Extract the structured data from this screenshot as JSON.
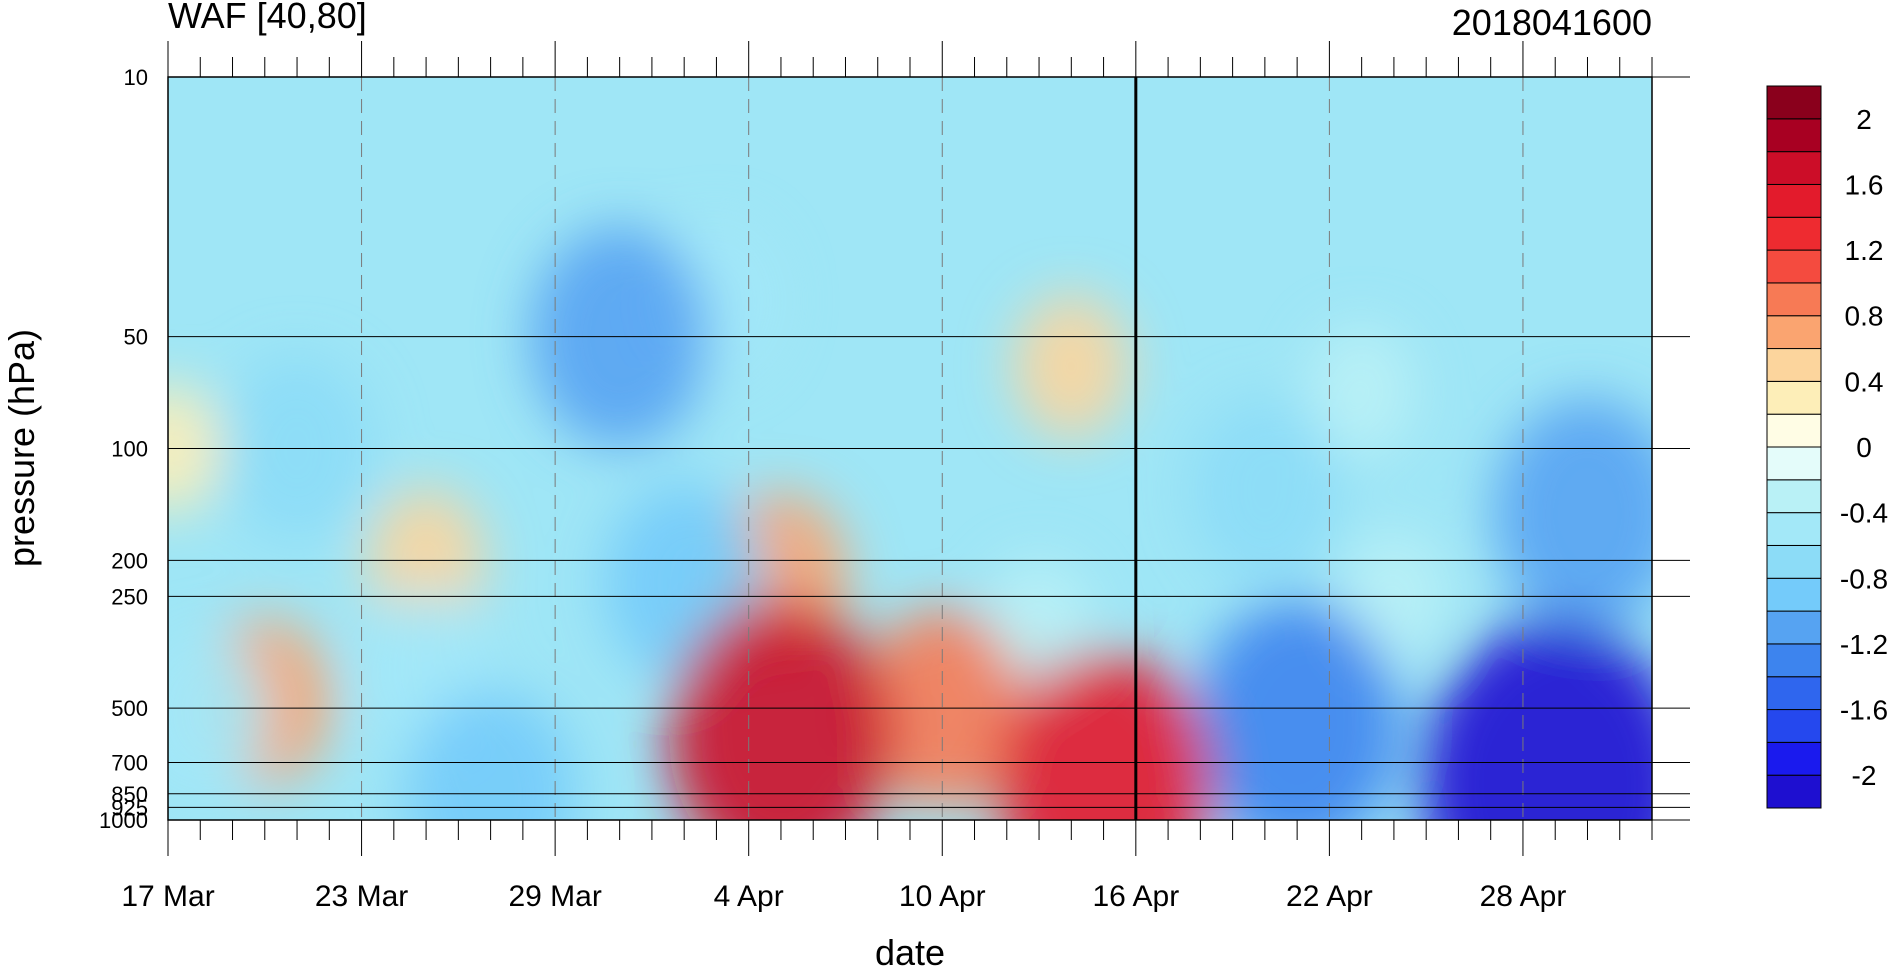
{
  "chart_data": {
    "type": "heatmap",
    "title_left": "WAF [40,80]",
    "title_right": "2018041600",
    "xlabel": "date",
    "ylabel": "pressure (hPa)",
    "x_ticks": [
      {
        "date": "2018-03-17",
        "label": "17 Mar"
      },
      {
        "date": "2018-03-23",
        "label": "23 Mar"
      },
      {
        "date": "2018-03-29",
        "label": "29 Mar"
      },
      {
        "date": "2018-04-04",
        "label": "4 Apr"
      },
      {
        "date": "2018-04-10",
        "label": "10 Apr"
      },
      {
        "date": "2018-04-16",
        "label": "16 Apr"
      },
      {
        "date": "2018-04-22",
        "label": "22 Apr"
      },
      {
        "date": "2018-04-28",
        "label": "28 Apr"
      }
    ],
    "xlim": [
      "2018-03-17",
      "2018-05-02"
    ],
    "analysis_date": "2018-04-16",
    "y_scale": "log",
    "ylim": [
      1000,
      10
    ],
    "y_ticks": [
      {
        "value": 10,
        "label": "10"
      },
      {
        "value": 50,
        "label": "50"
      },
      {
        "value": 100,
        "label": "100"
      },
      {
        "value": 200,
        "label": "200"
      },
      {
        "value": 250,
        "label": "250"
      },
      {
        "value": 500,
        "label": "500"
      },
      {
        "value": 700,
        "label": "700"
      },
      {
        "value": 850,
        "label": "850"
      },
      {
        "value": 925,
        "label": "925"
      },
      {
        "value": 1000,
        "label": "1000"
      }
    ],
    "colorbar": {
      "levels": [
        -2.2,
        -2.0,
        -1.8,
        -1.6,
        -1.4,
        -1.2,
        -1.0,
        -0.8,
        -0.6,
        -0.4,
        -0.2,
        0.0,
        0.2,
        0.4,
        0.6,
        0.8,
        1.0,
        1.2,
        1.4,
        1.6,
        1.8,
        2.0,
        2.2
      ],
      "colors": [
        "#1e0fd0",
        "#1a1aee",
        "#2548ee",
        "#2f66ee",
        "#3d84ee",
        "#56a3f2",
        "#74cbfa",
        "#8cdcf7",
        "#a3e8f8",
        "#b9f1f6",
        "#e4fcfa",
        "#fffde5",
        "#fdeeb8",
        "#fcd59d",
        "#faa470",
        "#f77a55",
        "#f44b3f",
        "#ee2b30",
        "#e31b2c",
        "#cc0d28",
        "#a80022",
        "#8a001c"
      ],
      "tick_labels": [
        {
          "value": 2.0,
          "label": "2"
        },
        {
          "value": 1.6,
          "label": "1.6"
        },
        {
          "value": 1.2,
          "label": "1.2"
        },
        {
          "value": 0.8,
          "label": "0.8"
        },
        {
          "value": 0.4,
          "label": "0.4"
        },
        {
          "value": 0.0,
          "label": "0"
        },
        {
          "value": -0.4,
          "label": "-0.4"
        },
        {
          "value": -0.8,
          "label": "-0.8"
        },
        {
          "value": -1.2,
          "label": "-1.2"
        },
        {
          "value": -1.6,
          "label": "-1.6"
        },
        {
          "value": -2.0,
          "label": "-2"
        }
      ]
    },
    "features": [
      {
        "date": "2018-04-05",
        "pressure": 600,
        "value": 1.6
      },
      {
        "date": "2018-04-15",
        "pressure": 800,
        "value": 1.5
      },
      {
        "date": "2018-04-10",
        "pressure": 500,
        "value": 0.9
      },
      {
        "date": "2018-04-05",
        "pressure": 220,
        "value": 0.6
      },
      {
        "date": "2018-04-14",
        "pressure": 60,
        "value": 0.4
      },
      {
        "date": "2018-03-20",
        "pressure": 480,
        "value": 0.6
      },
      {
        "date": "2018-03-25",
        "pressure": 200,
        "value": 0.4
      },
      {
        "date": "2018-03-17",
        "pressure": 100,
        "value": 0.3
      },
      {
        "date": "2018-04-13",
        "pressure": 300,
        "value": -0.3
      },
      {
        "date": "2018-04-21",
        "pressure": 560,
        "value": -1.4
      },
      {
        "date": "2018-04-29",
        "pressure": 800,
        "value": -2.1
      },
      {
        "date": "2018-04-30",
        "pressure": 150,
        "value": -1.2
      },
      {
        "date": "2018-04-24",
        "pressure": 250,
        "value": -0.3
      },
      {
        "date": "2018-04-20",
        "pressure": 130,
        "value": -0.8
      },
      {
        "date": "2018-03-21",
        "pressure": 100,
        "value": -0.8
      },
      {
        "date": "2018-03-31",
        "pressure": 50,
        "value": -1.1
      },
      {
        "date": "2018-04-02",
        "pressure": 230,
        "value": -0.9
      },
      {
        "date": "2018-03-27",
        "pressure": 850,
        "value": -1.0
      },
      {
        "date": "2018-04-23",
        "pressure": 70,
        "value": -0.3
      },
      {
        "date": "2018-04-03",
        "pressure": 40,
        "value": -0.5
      },
      {
        "date": "2018-03-25",
        "pressure": 400,
        "value": -0.6
      },
      {
        "date": "2018-03-18",
        "pressure": 520,
        "value": -0.6
      }
    ]
  }
}
